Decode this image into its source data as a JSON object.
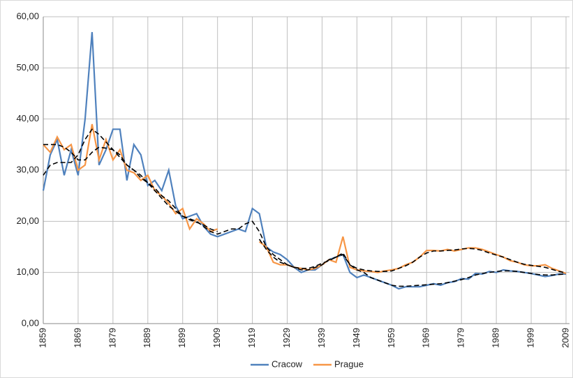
{
  "chart_data": {
    "type": "line",
    "x": [
      1859,
      1861,
      1863,
      1865,
      1867,
      1869,
      1871,
      1873,
      1875,
      1877,
      1879,
      1881,
      1883,
      1885,
      1887,
      1889,
      1891,
      1893,
      1895,
      1897,
      1899,
      1901,
      1903,
      1905,
      1907,
      1909,
      1911,
      1913,
      1915,
      1917,
      1919,
      1921,
      1923,
      1925,
      1927,
      1929,
      1931,
      1933,
      1935,
      1937,
      1939,
      1941,
      1943,
      1945,
      1947,
      1949,
      1951,
      1953,
      1955,
      1957,
      1959,
      1961,
      1963,
      1965,
      1967,
      1969,
      1971,
      1973,
      1975,
      1977,
      1979,
      1981,
      1983,
      1985,
      1987,
      1989,
      1991,
      1993,
      1995,
      1997,
      1999,
      2001,
      2003,
      2005,
      2007,
      2009
    ],
    "series": [
      {
        "name": "Cracow",
        "color": "#4f81bd",
        "values": [
          26,
          33,
          36,
          29,
          34,
          29,
          40,
          57,
          31,
          34,
          38,
          38,
          28,
          35,
          33,
          27,
          28,
          26,
          30,
          23,
          20.5,
          21,
          21.5,
          19,
          17.5,
          17,
          17.5,
          18,
          18.5,
          18,
          22.5,
          21.5,
          15,
          14,
          13.5,
          12.5,
          11,
          10,
          10.5,
          10.5,
          11.5,
          12.5,
          13,
          13.5,
          10,
          9,
          9.5,
          9,
          8.5,
          8,
          7.5,
          6.8,
          7.2,
          7.2,
          7.2,
          7.5,
          7.8,
          7.5,
          8,
          8.2,
          8.8,
          8.7,
          9.8,
          9.7,
          10.2,
          10,
          10.5,
          10.3,
          10.2,
          10,
          9.8,
          9.5,
          9.2,
          9.4,
          9.7,
          9.7
        ]
      },
      {
        "name": "Prague",
        "color": "#f79646",
        "values": [
          35,
          33.5,
          36.5,
          34,
          35,
          30,
          31,
          39,
          32,
          36,
          32,
          34,
          30,
          29.5,
          28,
          29,
          26,
          25,
          23.5,
          21.5,
          22.5,
          18.5,
          20.5,
          19.5,
          18,
          18.5,
          null,
          null,
          null,
          null,
          null,
          16,
          15,
          12,
          11.5,
          11.5,
          11,
          10.8,
          10.5,
          10.8,
          11.5,
          12.5,
          12,
          17,
          11,
          10.5,
          10.3,
          10.2,
          10,
          10.3,
          10.5,
          10.8,
          11.5,
          12,
          13,
          14.3,
          14.3,
          14.2,
          14.5,
          14.2,
          14.5,
          14.8,
          14.8,
          14.5,
          14,
          13.5,
          13,
          12.3,
          12,
          11.5,
          11.3,
          11.3,
          11.5,
          10.8,
          10.3,
          9.8
        ]
      }
    ],
    "trendlines": [
      {
        "color": "#000000",
        "values": [
          29,
          31,
          31.5,
          31.5,
          31.5,
          33,
          36,
          38,
          37,
          35.5,
          34,
          32.5,
          31,
          30,
          29,
          27.5,
          26.5,
          25,
          24,
          22.5,
          21,
          20.5,
          20,
          19,
          18,
          17.5,
          18,
          18.5,
          18.5,
          19.5,
          20,
          18,
          15,
          13.5,
          12.5,
          11.5,
          11,
          10.5,
          10.5,
          11,
          11.5,
          12.5,
          13,
          13.5,
          11.5,
          10.5,
          10,
          9,
          8.5,
          8,
          7.5,
          7.3,
          7.3,
          7.4,
          7.5,
          7.6,
          7.7,
          7.8,
          8,
          8.3,
          8.6,
          9,
          9.5,
          9.8,
          10,
          10.2,
          10.3,
          10.3,
          10.2,
          10,
          9.8,
          9.6,
          9.5,
          9.5,
          9.6,
          9.7
        ]
      },
      {
        "color": "#000000",
        "values": [
          35,
          35,
          35,
          34.5,
          33.5,
          32,
          32,
          33.5,
          34.5,
          34.3,
          34,
          33,
          31,
          30,
          28.5,
          27.5,
          26,
          24.5,
          23,
          22,
          21,
          20.3,
          19.8,
          19.3,
          18.5,
          18,
          null,
          null,
          null,
          null,
          null,
          16.5,
          14.5,
          13,
          12,
          11.5,
          11,
          10.8,
          10.8,
          11.2,
          11.8,
          12.3,
          13,
          13.8,
          11.5,
          10.8,
          10.5,
          10.3,
          10.2,
          10.2,
          10.3,
          10.8,
          11.3,
          12,
          13,
          13.8,
          14.2,
          14.2,
          14.3,
          14.4,
          14.6,
          14.7,
          14.6,
          14.3,
          13.8,
          13.4,
          13,
          12.5,
          12,
          11.6,
          11.4,
          11.2,
          11,
          10.6,
          10.2,
          9.9
        ]
      }
    ],
    "xlim": [
      1859,
      2010
    ],
    "xticks": [
      1859,
      1869,
      1879,
      1889,
      1899,
      1909,
      1919,
      1929,
      1939,
      1949,
      1959,
      1969,
      1979,
      1989,
      1999,
      2009
    ],
    "ylim": [
      0,
      60
    ],
    "yticks": [
      {
        "value": 0,
        "label": "0,00"
      },
      {
        "value": 10,
        "label": "10,00"
      },
      {
        "value": 20,
        "label": "20,00"
      },
      {
        "value": 30,
        "label": "30,00"
      },
      {
        "value": 40,
        "label": "40,00"
      },
      {
        "value": 50,
        "label": "50,00"
      },
      {
        "value": 60,
        "label": "60,00"
      }
    ],
    "grid": true,
    "legend": "bottom"
  }
}
